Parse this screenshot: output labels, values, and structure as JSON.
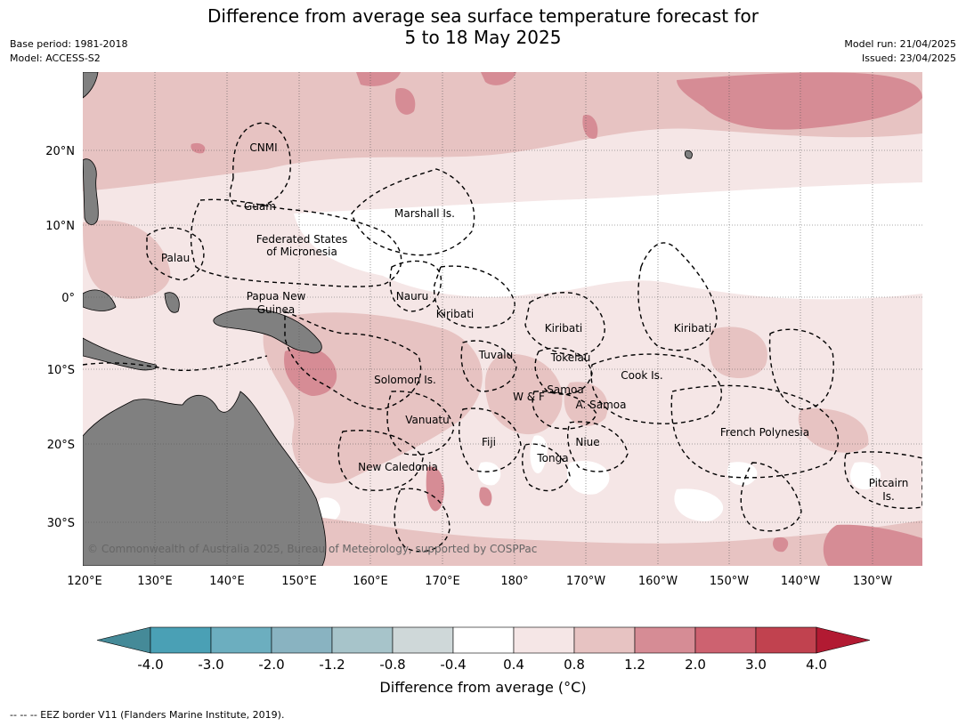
{
  "title": {
    "line1": "Difference from average sea surface temperature forecast for",
    "line2": "5 to 18 May 2025"
  },
  "meta_left": {
    "base_period": "Base period: 1981-2018",
    "model": "Model: ACCESS-S2"
  },
  "meta_right": {
    "model_run": "Model run: 21/04/2025",
    "issued": "Issued: 23/04/2025"
  },
  "map": {
    "lon_ticks": [
      "120°E",
      "130°E",
      "140°E",
      "150°E",
      "160°E",
      "170°E",
      "180°",
      "170°W",
      "160°W",
      "150°W",
      "140°W",
      "130°W"
    ],
    "lat_ticks": [
      "20°N",
      "10°N",
      "0°",
      "10°S",
      "20°S",
      "30°S"
    ],
    "places": [
      {
        "name": "CNMI"
      },
      {
        "name": "Guam"
      },
      {
        "name": "Marshall Is."
      },
      {
        "name": "Federated States"
      },
      {
        "name": "of Micronesia"
      },
      {
        "name": "Palau"
      },
      {
        "name": "Papua New"
      },
      {
        "name": "Guinea"
      },
      {
        "name": "Nauru"
      },
      {
        "name": "Kiribati"
      },
      {
        "name": "Kiribati"
      },
      {
        "name": "Kiribati"
      },
      {
        "name": "Tuvalu"
      },
      {
        "name": "Tokelau"
      },
      {
        "name": "Solomon Is."
      },
      {
        "name": "Samoa"
      },
      {
        "name": "W & F"
      },
      {
        "name": "A. Samoa"
      },
      {
        "name": "Cook Is."
      },
      {
        "name": "Vanuatu"
      },
      {
        "name": "Fiji"
      },
      {
        "name": "Niue"
      },
      {
        "name": "French Polynesia"
      },
      {
        "name": "Tonga"
      },
      {
        "name": "New Caledonia"
      },
      {
        "name": "Pitcairn"
      },
      {
        "name": "Is."
      }
    ],
    "copyright": "© Commonwealth of Australia 2025, Bureau of Meteorology, supported by COSPPac",
    "colors": {
      "land": "#808080",
      "grid": "#555555"
    }
  },
  "colorbar": {
    "colors": [
      "#458a98",
      "#4aa0b5",
      "#6caebf",
      "#89b3c1",
      "#a7c4ca",
      "#cfd8d9",
      "#ffffff",
      "#f5e6e6",
      "#e7c3c2",
      "#d68c95",
      "#cd6270",
      "#c1424f",
      "#b21a32"
    ],
    "labels": [
      "-4.0",
      "-3.0",
      "-2.0",
      "-1.2",
      "-0.8",
      "-0.4",
      "0.4",
      "0.8",
      "1.2",
      "2.0",
      "3.0",
      "4.0"
    ],
    "title": "Difference from average (°C)"
  },
  "footer": "--  --  -- EEZ border V11 (Flanders Marine Institute, 2019)."
}
